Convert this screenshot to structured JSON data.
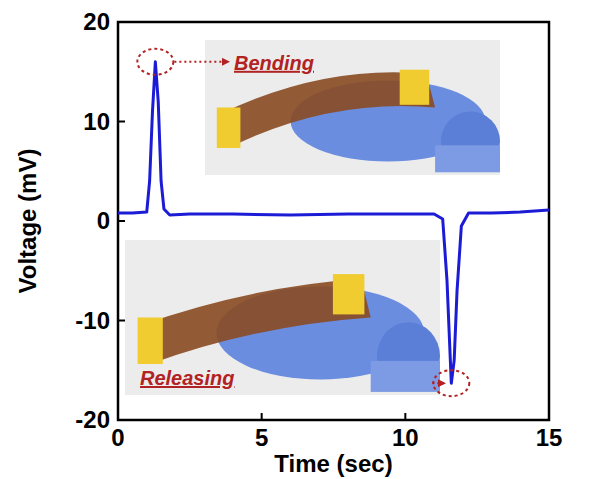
{
  "chart_data": {
    "type": "line",
    "x_label": "Time (sec)",
    "y_label": "Voltage (mV)",
    "x": [
      0,
      0.5,
      1.0,
      1.1,
      1.2,
      1.3,
      1.4,
      1.5,
      1.6,
      1.8,
      2.5,
      4,
      6,
      8,
      10,
      11.0,
      11.3,
      11.45,
      11.6,
      11.7,
      11.8,
      11.95,
      12.2,
      13,
      14,
      14.5,
      15
    ],
    "values": [
      0.8,
      0.8,
      0.9,
      4,
      11,
      16,
      12,
      4,
      1.2,
      0.6,
      0.7,
      0.7,
      0.6,
      0.7,
      0.7,
      0.7,
      0.2,
      -6,
      -16.3,
      -14,
      -7,
      -0.5,
      0.8,
      0.8,
      0.9,
      1.0,
      1.1
    ],
    "color": "#1c1cd6",
    "xlim": [
      0,
      15
    ],
    "xticks": [
      0,
      5,
      10,
      15
    ],
    "ylim": [
      -20,
      20
    ],
    "yticks": [
      -20,
      -10,
      0,
      10,
      20
    ],
    "grid": false,
    "annotations": [
      {
        "text": "Bending",
        "x": 1.3,
        "y": 16
      },
      {
        "text": "Releasing",
        "x": 11.6,
        "y": -16.3
      }
    ]
  }
}
